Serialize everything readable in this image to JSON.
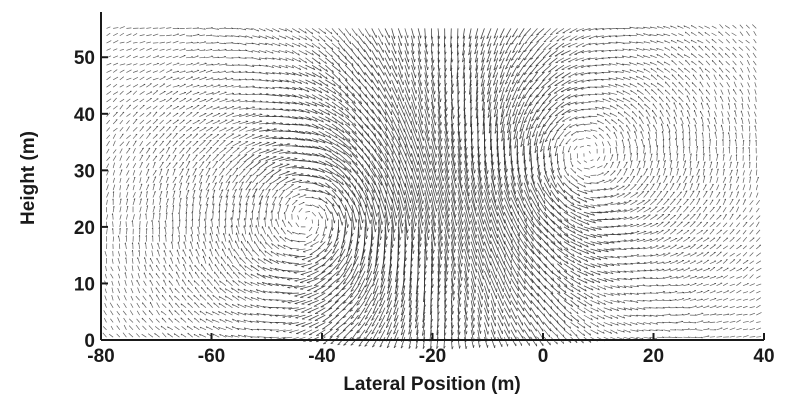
{
  "chart_data": {
    "type": "vector_field",
    "title": "",
    "xlabel": "Lateral Position (m)",
    "ylabel": "Height (m)",
    "xlim": [
      -80,
      40
    ],
    "ylim": [
      0,
      58
    ],
    "x_ticks": [
      -80,
      -60,
      -40,
      -20,
      0,
      20,
      40
    ],
    "y_ticks": [
      0,
      10,
      20,
      30,
      40,
      50
    ],
    "x_tick_labels": [
      "-80",
      "-60",
      "-40",
      "-20",
      "0",
      "20",
      "40"
    ],
    "y_tick_labels": [
      "0",
      "10",
      "20",
      "30",
      "40",
      "50"
    ],
    "grid": false,
    "legend": "none",
    "series": [
      {
        "role": "vortex",
        "center_x": -40,
        "center_y": 22,
        "core_radius_m": 12,
        "rotation": "clockwise"
      },
      {
        "role": "vortex",
        "center_x": 4,
        "center_y": 32,
        "core_radius_m": 14,
        "rotation": "counterclockwise"
      }
    ],
    "colors": {
      "vectors": "#2a2a2a",
      "axes": "#1a1a1a",
      "background": "#ffffff"
    }
  }
}
